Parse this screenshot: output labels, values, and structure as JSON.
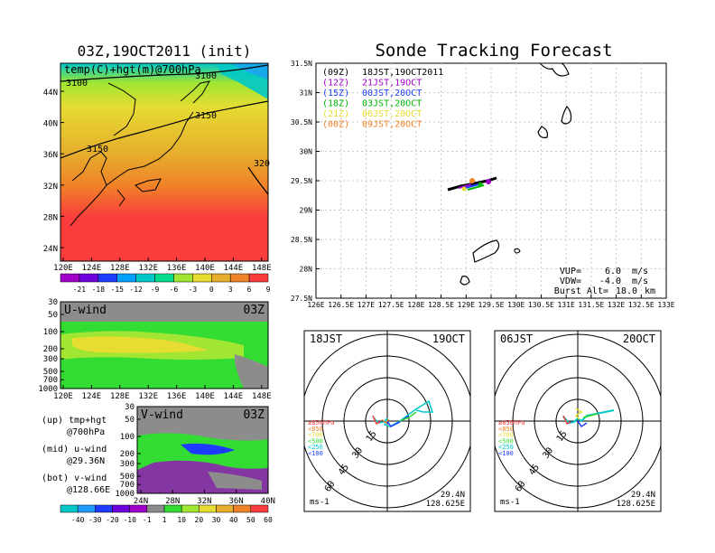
{
  "left_title": "03Z,19OCT2011 (init)",
  "right_title": "Sonde Tracking Forecast",
  "temp_panel": {
    "label": "temp(C)+hgt(m)@700hPa",
    "lat_ticks": [
      "44N",
      "40N",
      "36N",
      "32N",
      "28N",
      "24N"
    ],
    "lon_ticks": [
      "120E",
      "124E",
      "128E",
      "132E",
      "136E",
      "140E",
      "144E",
      "148E"
    ],
    "contour_labels": [
      "3100",
      "3100",
      "3150",
      "3150",
      "320"
    ],
    "colorbar_labels": [
      "-21",
      "-18",
      "-15",
      "-12",
      "-9",
      "-6",
      "-3",
      "0",
      "3",
      "6",
      "9"
    ],
    "colorbar_colors": [
      "#a000c8",
      "#6e00dc",
      "#1e3cff",
      "#00a0ff",
      "#00c8c8",
      "#00dc8c",
      "#a0e632",
      "#e6dc32",
      "#e6af2d",
      "#f08228",
      "#fa3c3c"
    ]
  },
  "u_panel": {
    "label": "U-wind",
    "time": "03Z",
    "p_ticks": [
      "30",
      "50",
      "100",
      "200",
      "300",
      "500",
      "700",
      "1000"
    ],
    "lon_ticks": [
      "120E",
      "124E",
      "128E",
      "132E",
      "136E",
      "140E",
      "144E",
      "148E"
    ]
  },
  "v_panel": {
    "label": "V-wind",
    "time": "03Z",
    "p_ticks": [
      "30",
      "50",
      "100",
      "200",
      "300",
      "500",
      "700",
      "1000"
    ],
    "lat_ticks": [
      "24N",
      "28N",
      "32N",
      "36N",
      "40N"
    ]
  },
  "notes": [
    {
      "line1": "(up) tmp+hgt",
      "line2": "@700hPa"
    },
    {
      "line1": "(mid) u-wind",
      "line2": "@29.36N"
    },
    {
      "line1": "(bot) v-wind",
      "line2": "@128.66E"
    }
  ],
  "wind_colorbar": {
    "labels": [
      "-40",
      "-30",
      "-20",
      "-10",
      "-1",
      "1",
      "10",
      "20",
      "30",
      "40",
      "50",
      "60"
    ],
    "colors": [
      "#00c8c8",
      "#1e9bff",
      "#1e3cff",
      "#6e00dc",
      "#a000c8",
      "#8c8c8c",
      "#32dc32",
      "#a0e632",
      "#e6dc32",
      "#e6af2d",
      "#f08228",
      "#fa3c3c"
    ]
  },
  "track_map": {
    "lat_ticks": [
      "31.5N",
      "31N",
      "30.5N",
      "30N",
      "29.5N",
      "29N",
      "28.5N",
      "28N",
      "27.5N"
    ],
    "lon_ticks": [
      "126E",
      "126.5E",
      "127E",
      "127.5E",
      "128E",
      "128.5E",
      "129E",
      "129.5E",
      "130E",
      "130.5E",
      "131E",
      "131.5E",
      "132E",
      "132.5E",
      "133E"
    ],
    "legend": [
      {
        "code": "(09Z)",
        "time": "18JST,19OCT2011",
        "color": "#000000"
      },
      {
        "code": "(12Z)",
        "time": "21JST,19OCT",
        "color": "#a000c8"
      },
      {
        "code": "(15Z)",
        "time": "00JST,20OCT",
        "color": "#1e3cff"
      },
      {
        "code": "(18Z)",
        "time": "03JST,20OCT",
        "color": "#00b400"
      },
      {
        "code": "(21Z)",
        "time": "06JST,20OCT",
        "color": "#e6dc32"
      },
      {
        "code": "(00Z)",
        "time": "09JST,20OCT",
        "color": "#f08228"
      }
    ],
    "params": [
      {
        "label": "VUP=",
        "value": "6.0",
        "unit": "m/s"
      },
      {
        "label": "VDW=",
        "value": "-4.0",
        "unit": "m/s"
      },
      {
        "label": "Burst Alt=",
        "value": "18.0",
        "unit": "km"
      }
    ]
  },
  "hodographs": [
    {
      "jst": "18JST",
      "date": "19OCT",
      "lat": "29.4N",
      "lon": "128.625E",
      "unit": "ms-1",
      "ring_labels": [
        "15",
        "30",
        "45",
        "60"
      ],
      "pressure_labels": [
        "≥850hPa",
        "<850",
        "<700",
        "<500",
        "<250",
        "<100"
      ]
    },
    {
      "jst": "06JST",
      "date": "20OCT",
      "lat": "29.4N",
      "lon": "128.625E",
      "unit": "ms-1",
      "ring_labels": [
        "15",
        "30",
        "45",
        "60"
      ],
      "pressure_labels": [
        "≥850hPa",
        "<850",
        "<700",
        "<500",
        "<250",
        "<100"
      ]
    }
  ],
  "pressure_colors": [
    "#fa3c3c",
    "#f08228",
    "#e6dc32",
    "#32dc32",
    "#00c8c8",
    "#1e3cff"
  ]
}
